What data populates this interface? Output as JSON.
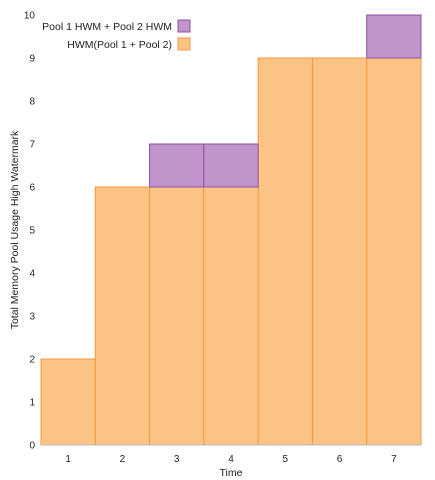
{
  "chart_data": {
    "type": "bar",
    "stacked": true,
    "categories": [
      "1",
      "2",
      "3",
      "4",
      "5",
      "6",
      "7"
    ],
    "series": [
      {
        "name": "HWM(Pool 1 + Pool 2)",
        "values": [
          2,
          6,
          6,
          6,
          9,
          9,
          9
        ],
        "color": "#FBC384",
        "stroke": "#F19A3E"
      },
      {
        "name": "Pool 1 HWM + Pool 2 HWM",
        "values": [
          0,
          0,
          1,
          1,
          0,
          0,
          1
        ],
        "color": "#C194CB",
        "stroke": "#8E4FA0"
      }
    ],
    "yticks": [
      0,
      1,
      2,
      3,
      4,
      5,
      6,
      7,
      8,
      9,
      10
    ],
    "xlabel": "Time",
    "ylabel": "Total Memory Pool Usage High Watermark",
    "ylim": [
      0,
      10
    ],
    "grid": false,
    "legend_position": "top-right",
    "legend_order": [
      "Pool 1 HWM + Pool 2 HWM",
      "HWM(Pool 1 + Pool 2)"
    ]
  }
}
